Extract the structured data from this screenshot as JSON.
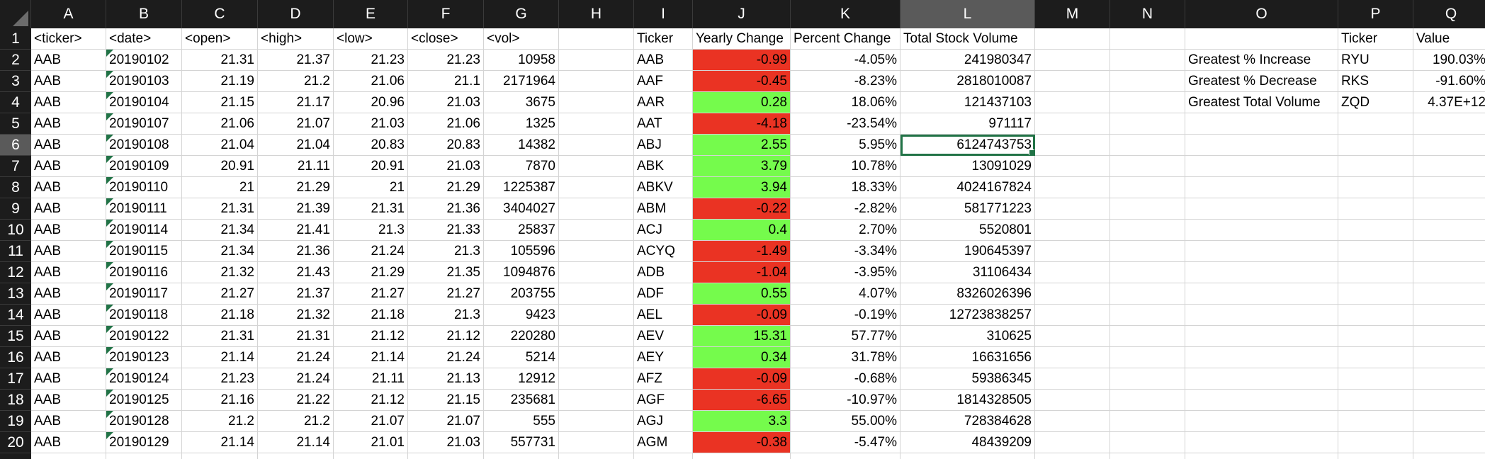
{
  "columns": [
    "A",
    "B",
    "C",
    "D",
    "E",
    "F",
    "G",
    "H",
    "I",
    "J",
    "K",
    "L",
    "M",
    "N",
    "O",
    "P",
    "Q"
  ],
  "selected_column": "L",
  "selected_row": 6,
  "colors": {
    "negative_fill": "#ea3323",
    "positive_fill": "#75fb4c",
    "selection": "#217346"
  },
  "rows": [
    {
      "n": "1",
      "A": "<ticker>",
      "B": "<date>",
      "C": "<open>",
      "D": "<high>",
      "E": "<low>",
      "F": "<close>",
      "G": "<vol>",
      "H": "",
      "I": "Ticker",
      "J": "Yearly Change",
      "K": "Percent Change",
      "L": "Total Stock Volume",
      "M": "",
      "N": "",
      "O": "",
      "P": "Ticker",
      "Q": "Value"
    },
    {
      "n": "2",
      "A": "AAB",
      "B": "20190102",
      "C": "21.31",
      "D": "21.37",
      "E": "21.23",
      "F": "21.23",
      "G": "10958",
      "H": "",
      "I": "AAB",
      "J": "-0.99",
      "K": "-4.05%",
      "L": "241980347",
      "M": "",
      "N": "",
      "O": "Greatest % Increase",
      "P": "RYU",
      "Q": "190.03%"
    },
    {
      "n": "3",
      "A": "AAB",
      "B": "20190103",
      "C": "21.19",
      "D": "21.2",
      "E": "21.06",
      "F": "21.1",
      "G": "2171964",
      "H": "",
      "I": "AAF",
      "J": "-0.45",
      "K": "-8.23%",
      "L": "2818010087",
      "M": "",
      "N": "",
      "O": "Greatest % Decrease",
      "P": "RKS",
      "Q": "-91.60%"
    },
    {
      "n": "4",
      "A": "AAB",
      "B": "20190104",
      "C": "21.15",
      "D": "21.17",
      "E": "20.96",
      "F": "21.03",
      "G": "3675",
      "H": "",
      "I": "AAR",
      "J": "0.28",
      "K": "18.06%",
      "L": "121437103",
      "M": "",
      "N": "",
      "O": "Greatest Total Volume",
      "P": "ZQD",
      "Q": "4.37E+12"
    },
    {
      "n": "5",
      "A": "AAB",
      "B": "20190107",
      "C": "21.06",
      "D": "21.07",
      "E": "21.03",
      "F": "21.06",
      "G": "1325",
      "H": "",
      "I": "AAT",
      "J": "-4.18",
      "K": "-23.54%",
      "L": "971117",
      "M": "",
      "N": "",
      "O": "",
      "P": "",
      "Q": ""
    },
    {
      "n": "6",
      "A": "AAB",
      "B": "20190108",
      "C": "21.04",
      "D": "21.04",
      "E": "20.83",
      "F": "20.83",
      "G": "14382",
      "H": "",
      "I": "ABJ",
      "J": "2.55",
      "K": "5.95%",
      "L": "6124743753",
      "M": "",
      "N": "",
      "O": "",
      "P": "",
      "Q": ""
    },
    {
      "n": "7",
      "A": "AAB",
      "B": "20190109",
      "C": "20.91",
      "D": "21.11",
      "E": "20.91",
      "F": "21.03",
      "G": "7870",
      "H": "",
      "I": "ABK",
      "J": "3.79",
      "K": "10.78%",
      "L": "13091029",
      "M": "",
      "N": "",
      "O": "",
      "P": "",
      "Q": ""
    },
    {
      "n": "8",
      "A": "AAB",
      "B": "20190110",
      "C": "21",
      "D": "21.29",
      "E": "21",
      "F": "21.29",
      "G": "1225387",
      "H": "",
      "I": "ABKV",
      "J": "3.94",
      "K": "18.33%",
      "L": "4024167824",
      "M": "",
      "N": "",
      "O": "",
      "P": "",
      "Q": ""
    },
    {
      "n": "9",
      "A": "AAB",
      "B": "20190111",
      "C": "21.31",
      "D": "21.39",
      "E": "21.31",
      "F": "21.36",
      "G": "3404027",
      "H": "",
      "I": "ABM",
      "J": "-0.22",
      "K": "-2.82%",
      "L": "581771223",
      "M": "",
      "N": "",
      "O": "",
      "P": "",
      "Q": ""
    },
    {
      "n": "10",
      "A": "AAB",
      "B": "20190114",
      "C": "21.34",
      "D": "21.41",
      "E": "21.3",
      "F": "21.33",
      "G": "25837",
      "H": "",
      "I": "ACJ",
      "J": "0.4",
      "K": "2.70%",
      "L": "5520801",
      "M": "",
      "N": "",
      "O": "",
      "P": "",
      "Q": ""
    },
    {
      "n": "11",
      "A": "AAB",
      "B": "20190115",
      "C": "21.34",
      "D": "21.36",
      "E": "21.24",
      "F": "21.3",
      "G": "105596",
      "H": "",
      "I": "ACYQ",
      "J": "-1.49",
      "K": "-3.34%",
      "L": "190645397",
      "M": "",
      "N": "",
      "O": "",
      "P": "",
      "Q": ""
    },
    {
      "n": "12",
      "A": "AAB",
      "B": "20190116",
      "C": "21.32",
      "D": "21.43",
      "E": "21.29",
      "F": "21.35",
      "G": "1094876",
      "H": "",
      "I": "ADB",
      "J": "-1.04",
      "K": "-3.95%",
      "L": "31106434",
      "M": "",
      "N": "",
      "O": "",
      "P": "",
      "Q": ""
    },
    {
      "n": "13",
      "A": "AAB",
      "B": "20190117",
      "C": "21.27",
      "D": "21.37",
      "E": "21.27",
      "F": "21.27",
      "G": "203755",
      "H": "",
      "I": "ADF",
      "J": "0.55",
      "K": "4.07%",
      "L": "8326026396",
      "M": "",
      "N": "",
      "O": "",
      "P": "",
      "Q": ""
    },
    {
      "n": "14",
      "A": "AAB",
      "B": "20190118",
      "C": "21.18",
      "D": "21.32",
      "E": "21.18",
      "F": "21.3",
      "G": "9423",
      "H": "",
      "I": "AEL",
      "J": "-0.09",
      "K": "-0.19%",
      "L": "12723838257",
      "M": "",
      "N": "",
      "O": "",
      "P": "",
      "Q": ""
    },
    {
      "n": "15",
      "A": "AAB",
      "B": "20190122",
      "C": "21.31",
      "D": "21.31",
      "E": "21.12",
      "F": "21.12",
      "G": "220280",
      "H": "",
      "I": "AEV",
      "J": "15.31",
      "K": "57.77%",
      "L": "310625",
      "M": "",
      "N": "",
      "O": "",
      "P": "",
      "Q": ""
    },
    {
      "n": "16",
      "A": "AAB",
      "B": "20190123",
      "C": "21.14",
      "D": "21.24",
      "E": "21.14",
      "F": "21.24",
      "G": "5214",
      "H": "",
      "I": "AEY",
      "J": "0.34",
      "K": "31.78%",
      "L": "16631656",
      "M": "",
      "N": "",
      "O": "",
      "P": "",
      "Q": ""
    },
    {
      "n": "17",
      "A": "AAB",
      "B": "20190124",
      "C": "21.23",
      "D": "21.24",
      "E": "21.11",
      "F": "21.13",
      "G": "12912",
      "H": "",
      "I": "AFZ",
      "J": "-0.09",
      "K": "-0.68%",
      "L": "59386345",
      "M": "",
      "N": "",
      "O": "",
      "P": "",
      "Q": ""
    },
    {
      "n": "18",
      "A": "AAB",
      "B": "20190125",
      "C": "21.16",
      "D": "21.22",
      "E": "21.12",
      "F": "21.15",
      "G": "235681",
      "H": "",
      "I": "AGF",
      "J": "-6.65",
      "K": "-10.97%",
      "L": "1814328505",
      "M": "",
      "N": "",
      "O": "",
      "P": "",
      "Q": ""
    },
    {
      "n": "19",
      "A": "AAB",
      "B": "20190128",
      "C": "21.2",
      "D": "21.2",
      "E": "21.07",
      "F": "21.07",
      "G": "555",
      "H": "",
      "I": "AGJ",
      "J": "3.3",
      "K": "55.00%",
      "L": "728384628",
      "M": "",
      "N": "",
      "O": "",
      "P": "",
      "Q": ""
    },
    {
      "n": "20",
      "A": "AAB",
      "B": "20190129",
      "C": "21.14",
      "D": "21.14",
      "E": "21.01",
      "F": "21.03",
      "G": "557731",
      "H": "",
      "I": "AGM",
      "J": "-0.38",
      "K": "-5.47%",
      "L": "48439209",
      "M": "",
      "N": "",
      "O": "",
      "P": "",
      "Q": ""
    },
    {
      "n": "",
      "A": "",
      "B": "",
      "C": "",
      "D": "",
      "E": "",
      "F": "",
      "G": "",
      "H": "",
      "I": "",
      "J": "",
      "K": "",
      "L": "",
      "M": "",
      "N": "",
      "O": "",
      "P": "",
      "Q": ""
    }
  ]
}
